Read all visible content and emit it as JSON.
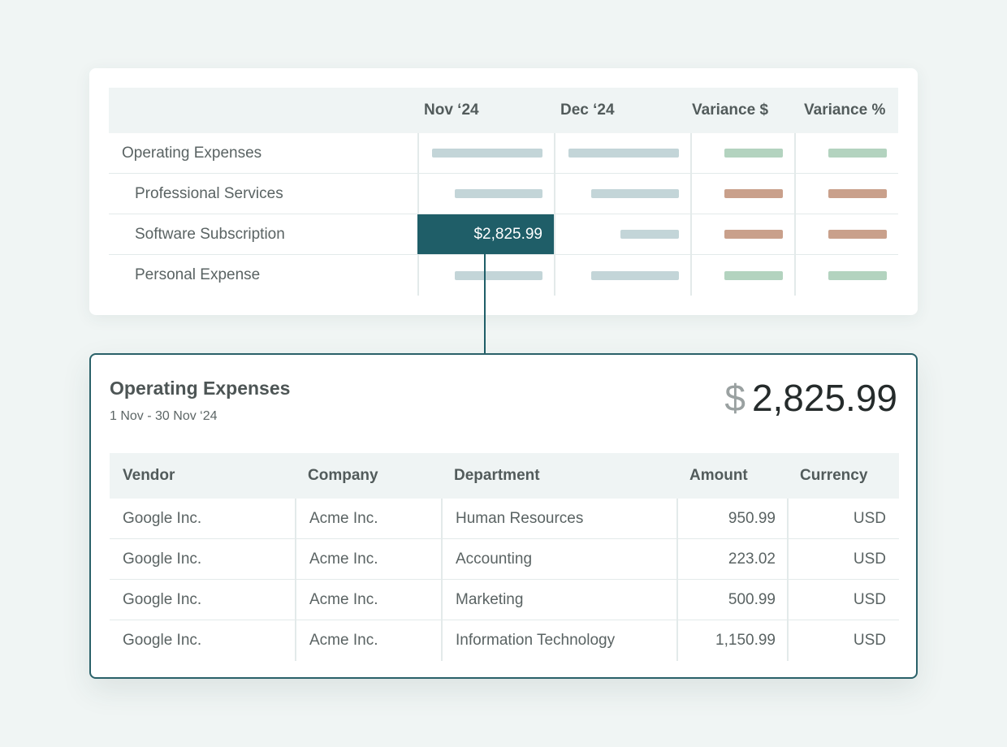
{
  "summary": {
    "headers": {
      "label": "",
      "nov": "Nov ‘24",
      "dec": "Dec ‘24",
      "variance_usd": "Variance $",
      "variance_pct": "Variance %"
    },
    "rows": [
      {
        "label": "Operating Expenses",
        "indent": false,
        "nov_bar": "blue",
        "dec_bar": "blue",
        "var_usd_bar": "green",
        "var_pct_bar": "green"
      },
      {
        "label": "Professional Services",
        "indent": true,
        "nov_bar": "blue",
        "dec_bar": "blue",
        "var_usd_bar": "red",
        "var_pct_bar": "red"
      },
      {
        "label": "Software Subscription",
        "indent": true,
        "nov_value": "$2,825.99",
        "nov_selected": true,
        "dec_bar": "blue",
        "var_usd_bar": "red",
        "var_pct_bar": "red"
      },
      {
        "label": "Personal Expense",
        "indent": true,
        "nov_bar": "blue",
        "dec_bar": "blue",
        "var_usd_bar": "green",
        "var_pct_bar": "green"
      }
    ],
    "colors": {
      "bar_blue": "#c3d5d8",
      "bar_green": "#b3d3bf",
      "bar_red": "#c9a08b",
      "selected": "#1f5e68"
    }
  },
  "detail": {
    "title": "Operating Expenses",
    "date_range": "1 Nov - 30 Nov ‘24",
    "total_currency_symbol": "$",
    "total_amount": "2,825.99",
    "columns": {
      "vendor": "Vendor",
      "company": "Company",
      "department": "Department",
      "amount": "Amount",
      "currency": "Currency"
    },
    "rows": [
      {
        "vendor": "Google Inc.",
        "company": "Acme Inc.",
        "department": "Human Resources",
        "amount": "950.99",
        "currency": "USD"
      },
      {
        "vendor": "Google Inc.",
        "company": "Acme Inc.",
        "department": "Accounting",
        "amount": "223.02",
        "currency": "USD"
      },
      {
        "vendor": "Google Inc.",
        "company": "Acme Inc.",
        "department": "Marketing",
        "amount": "500.99",
        "currency": "USD"
      },
      {
        "vendor": "Google Inc.",
        "company": "Acme Inc.",
        "department": "Information Technology",
        "amount": "1,150.99",
        "currency": "USD"
      }
    ],
    "accent_color": "#2a6169"
  }
}
